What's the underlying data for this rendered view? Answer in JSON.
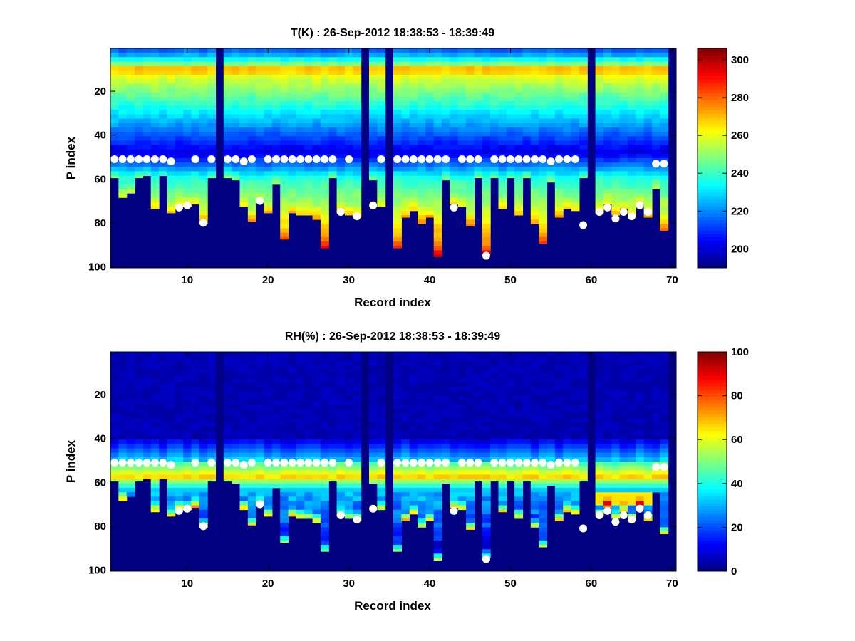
{
  "chart_data": [
    {
      "type": "heatmap",
      "title": "T(K) : 26-Sep-2012 18:38:53 - 18:39:49",
      "xlabel": "Record index",
      "ylabel": "P index",
      "xlim": [
        0.5,
        70.5
      ],
      "ylim": [
        100,
        0.5
      ],
      "xticks": [
        10,
        20,
        30,
        40,
        50,
        60,
        70
      ],
      "yticks": [
        20,
        40,
        60,
        80,
        100
      ],
      "colorbar": {
        "range": [
          190,
          306
        ],
        "ticks": [
          200,
          220,
          240,
          260,
          280,
          300
        ],
        "colormap": "jet"
      },
      "field": "temperature",
      "records": 70,
      "missing_records": [
        14,
        32,
        35,
        60,
        70
      ],
      "valid_bottom_p_index": [
        59,
        68,
        66,
        59,
        58,
        73,
        58,
        75,
        72,
        72,
        71,
        80,
        59,
        0,
        59,
        60,
        72,
        79,
        70,
        75,
        62,
        87,
        75,
        76,
        76,
        78,
        91,
        59,
        75,
        76,
        77,
        0,
        60,
        72,
        0,
        91,
        77,
        74,
        80,
        77,
        95,
        60,
        71,
        72,
        81,
        59,
        94,
        59,
        73,
        59,
        76,
        59,
        80,
        89,
        61,
        77,
        73,
        74,
        59,
        0,
        75,
        71,
        76,
        73,
        77,
        71,
        77,
        64,
        83,
        0
      ],
      "markers_p_index": [
        51,
        51,
        51,
        51,
        51,
        51,
        51,
        52,
        73,
        72,
        51,
        80,
        51,
        null,
        51,
        51,
        52,
        51,
        70,
        51,
        51,
        51,
        51,
        51,
        51,
        51,
        51,
        51,
        75,
        51,
        77,
        null,
        72,
        51,
        null,
        51,
        51,
        51,
        51,
        51,
        51,
        51,
        73,
        51,
        51,
        51,
        95,
        51,
        51,
        51,
        51,
        51,
        51,
        51,
        52,
        51,
        51,
        51,
        81,
        null,
        75,
        73,
        78,
        75,
        77,
        72,
        75,
        53,
        53,
        null
      ]
    },
    {
      "type": "heatmap",
      "title": "RH(%) : 26-Sep-2012 18:38:53 - 18:39:49",
      "xlabel": "Record index",
      "ylabel": "P index",
      "xlim": [
        0.5,
        70.5
      ],
      "ylim": [
        100,
        0.5
      ],
      "xticks": [
        10,
        20,
        30,
        40,
        50,
        60,
        70
      ],
      "yticks": [
        20,
        40,
        60,
        80,
        100
      ],
      "colorbar": {
        "range": [
          0,
          100
        ],
        "ticks": [
          0,
          20,
          40,
          60,
          80,
          100
        ],
        "colormap": "jet"
      },
      "field": "humidity",
      "records": 70,
      "missing_records": [
        14,
        32,
        35,
        60,
        70
      ],
      "valid_bottom_p_index": [
        59,
        68,
        66,
        59,
        58,
        73,
        58,
        75,
        72,
        72,
        71,
        80,
        59,
        0,
        59,
        60,
        72,
        79,
        70,
        75,
        62,
        87,
        75,
        76,
        76,
        78,
        91,
        59,
        75,
        76,
        77,
        0,
        60,
        72,
        0,
        91,
        77,
        74,
        80,
        77,
        95,
        60,
        71,
        72,
        81,
        59,
        94,
        59,
        73,
        59,
        76,
        59,
        80,
        89,
        61,
        77,
        73,
        74,
        59,
        0,
        75,
        71,
        76,
        73,
        77,
        71,
        77,
        64,
        83,
        0
      ],
      "markers_p_index": [
        51,
        51,
        51,
        51,
        51,
        51,
        51,
        52,
        73,
        72,
        51,
        80,
        51,
        null,
        51,
        51,
        52,
        51,
        70,
        51,
        51,
        51,
        51,
        51,
        51,
        51,
        51,
        51,
        75,
        51,
        77,
        null,
        72,
        51,
        null,
        51,
        51,
        51,
        51,
        51,
        51,
        51,
        73,
        51,
        51,
        51,
        95,
        51,
        51,
        51,
        51,
        51,
        51,
        51,
        52,
        51,
        51,
        51,
        81,
        null,
        75,
        73,
        78,
        75,
        77,
        72,
        75,
        53,
        53,
        null
      ]
    }
  ]
}
